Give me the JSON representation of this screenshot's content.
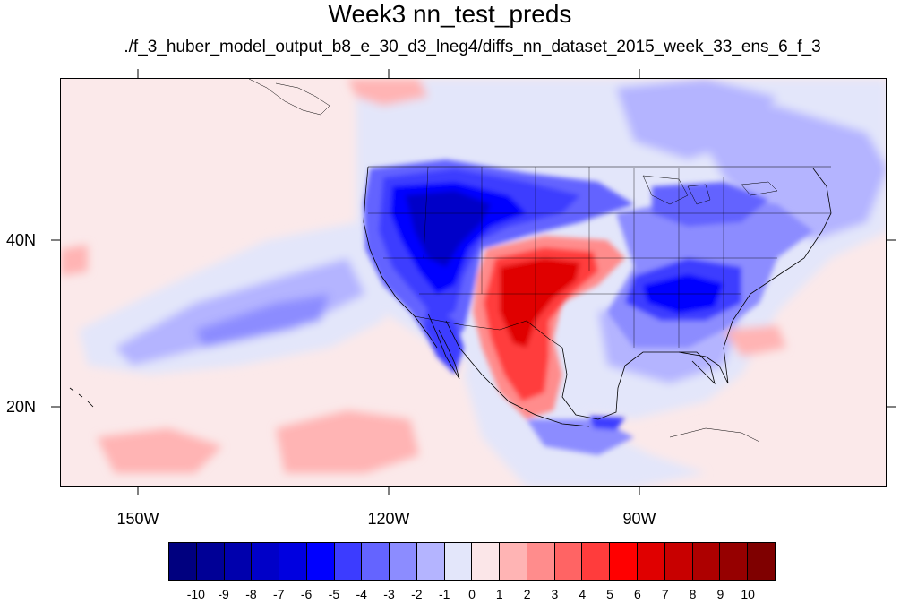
{
  "title": "Week3 nn_test_preds",
  "subtitle": "./f_3_huber_model_output_b8_e_30_d3_lneg4/diffs_nn_dataset_2015_week_33_ens_6_f_3",
  "axes": {
    "lat_labels": [
      "40N",
      "20N"
    ],
    "lon_labels": [
      "150W",
      "120W",
      "90W"
    ]
  },
  "colorbar": {
    "labels": [
      "-10",
      "-9",
      "-8",
      "-7",
      "-6",
      "-5",
      "-4",
      "-3",
      "-2",
      "-1",
      "0",
      "1",
      "2",
      "3",
      "4",
      "5",
      "6",
      "7",
      "8",
      "9",
      "10"
    ],
    "colors": [
      "#00007f",
      "#000096",
      "#0000ad",
      "#0000c8",
      "#0000e0",
      "#0000ff",
      "#3c3cff",
      "#6464ff",
      "#8c8cff",
      "#b4b4ff",
      "#e3e6fa",
      "#fbe6e8",
      "#ffb4b4",
      "#ff8c8c",
      "#ff6464",
      "#ff3c3c",
      "#ff0000",
      "#e00000",
      "#c80000",
      "#ad0000",
      "#960000",
      "#7f0000"
    ]
  },
  "palette": {
    "background_neutral": "#fbe9ea",
    "light_blue": "#e3e6fa",
    "blue_1": "#b4b4ff",
    "blue_2": "#8c8cff",
    "blue_3": "#6464ff",
    "blue_4": "#3c3cff",
    "blue_5": "#0000ff",
    "blue_6": "#0000c8",
    "pink_1": "#ffb4b4",
    "red_1": "#ff6464",
    "red_2": "#ff3c3c",
    "red_3": "#e00000"
  }
}
